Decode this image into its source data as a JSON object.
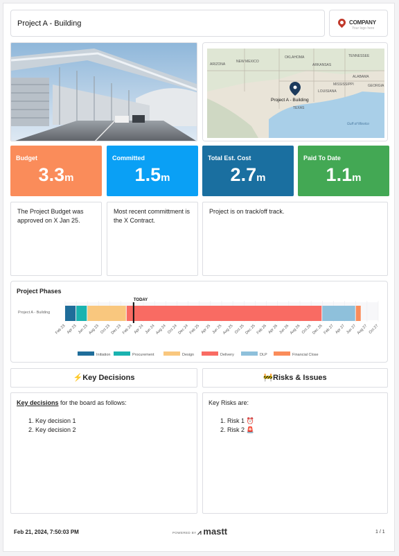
{
  "header": {
    "title": "Project A - Building",
    "logo": {
      "name": "COMPANY",
      "tagline": "Your logo here"
    }
  },
  "map": {
    "labels": [
      "ARIZONA",
      "NEW MEXICO",
      "OKLAHOMA",
      "ARKANSAS",
      "TENNESSEE",
      "ALABAMA",
      "GEORGIA",
      "LOUISIANA",
      "MISSISSIPPI",
      "TEXAS",
      "Gulf of Mexico"
    ],
    "pin_label": "Project A - Building"
  },
  "metrics": [
    {
      "label": "Budget",
      "value": "3.3",
      "unit": "m",
      "color": "#fa8c5a"
    },
    {
      "label": "Committed",
      "value": "1.5",
      "unit": "m",
      "color": "#0aa0f5"
    },
    {
      "label": "Total Est. Cost",
      "value": "2.7",
      "unit": "m",
      "color": "#1a6fa0"
    },
    {
      "label": "Paid To Date",
      "value": "1.1",
      "unit": "m",
      "color": "#43a854"
    }
  ],
  "notes": [
    "The Project Budget was approved on X Jan 25.",
    "Most recent committment is the X Contract.",
    "Project is on track/off track."
  ],
  "chart_data": {
    "type": "bar",
    "title": "Project Phases",
    "row_label": "Project A - Building",
    "today_label": "TODAY",
    "today": "Feb 24",
    "x_ticks": [
      "Feb 23",
      "Apr 23",
      "Jun 23",
      "Aug 23",
      "Oct 23",
      "Dec 23",
      "Feb 24",
      "Apr 24",
      "Jun 24",
      "Aug 24",
      "Oct 24",
      "Dec 24",
      "Feb 25",
      "Apr 25",
      "Jun 25",
      "Aug 25",
      "Oct 25",
      "Dec 25",
      "Feb 26",
      "Apr 26",
      "Jun 26",
      "Aug 26",
      "Oct 26",
      "Dec 26",
      "Feb 27",
      "Apr 27",
      "Jun 27",
      "Aug 27",
      "Oct 27"
    ],
    "series": [
      {
        "name": "Initiation",
        "start": "Feb 23",
        "end": "Apr 23",
        "color": "#1f6d9a"
      },
      {
        "name": "Procurement",
        "start": "Apr 23",
        "end": "Jun 23",
        "color": "#1ab3b0"
      },
      {
        "name": "Design",
        "start": "Jun 23",
        "end": "Jan 24",
        "color": "#f9c77e"
      },
      {
        "name": "Delivery",
        "start": "Jan 24",
        "end": "Dec 26",
        "color": "#f96b63"
      },
      {
        "name": "DLP",
        "start": "Dec 26",
        "end": "Jun 27",
        "color": "#8ec0db"
      },
      {
        "name": "Financial Close",
        "start": "Jun 27",
        "end": "Jul 27",
        "color": "#fa8c5a"
      }
    ]
  },
  "decisions": {
    "heading": "⚡Key Decisions",
    "intro_bold": "Key decisions",
    "intro_rest": " for the board as follows:",
    "items": [
      "Key decision 1",
      "Key decision 2"
    ]
  },
  "risks": {
    "heading": "🚧Risks & Issues",
    "intro": "Key Risks are:",
    "items": [
      "Risk 1 ⏰",
      "Risk 2 🚨"
    ]
  },
  "footer": {
    "timestamp": "Feb 21, 2024, 7:50:03 PM",
    "powered_by": "POWERED BY",
    "brand": "mastt",
    "page": "1 / 1"
  }
}
